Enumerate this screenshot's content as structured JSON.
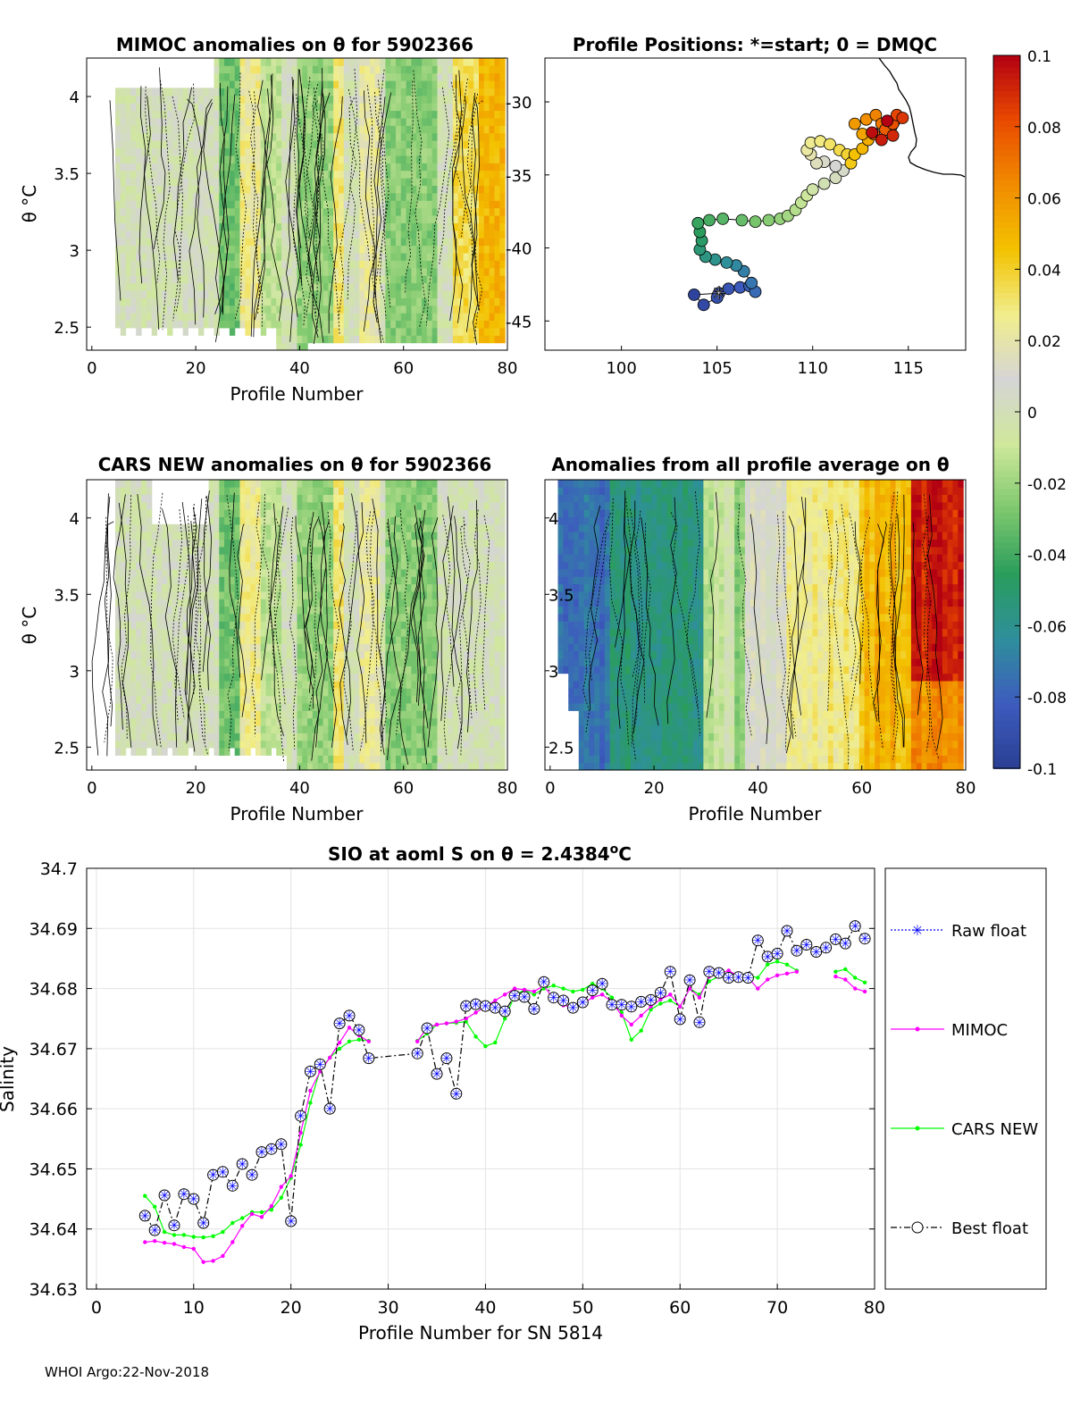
{
  "figure": {
    "footer": "WHOI Argo:22-Nov-2018",
    "colors": {
      "best": "#000000",
      "raw": "#0000ff",
      "mimoc": "#ff00ff",
      "cars": "#00ff00",
      "grid": "#e0e0e0"
    }
  },
  "colorbar": {
    "ticks": [
      "0.1",
      "0.08",
      "0.06",
      "0.04",
      "0.02",
      "0",
      "-0.02",
      "-0.04",
      "-0.06",
      "-0.08",
      "-0.1"
    ],
    "range": [
      -0.1,
      0.1
    ],
    "colormap": [
      "#2b3f94",
      "#3d5cbe",
      "#2f8f9c",
      "#2a9d5c",
      "#7ec86e",
      "#cfe89b",
      "#d5d5d5",
      "#f1ee8c",
      "#f3c200",
      "#f18c00",
      "#e94a00",
      "#b30012"
    ]
  },
  "chart_data": [
    {
      "id": "mimoc_section",
      "type": "heatmap",
      "title": "MIMOC anomalies on θ  for 5902366",
      "xlabel": "Profile Number",
      "ylabel": "θ °C",
      "x_ticks": [
        "0",
        "20",
        "40",
        "60",
        "80"
      ],
      "y_ticks": [
        "4",
        "3.5",
        "3",
        "2.5"
      ],
      "xlim": [
        -1,
        80
      ],
      "ylim": [
        2.35,
        4.25
      ]
    },
    {
      "id": "positions_map",
      "type": "scatter",
      "title": "Profile Positions: *=start; 0 = DMQC",
      "x_ticks": [
        "100",
        "105",
        "110",
        "115"
      ],
      "y_ticks": [
        "-30",
        "-35",
        "-40",
        "-45"
      ],
      "xlim": [
        96,
        118
      ],
      "ylim": [
        -47,
        -27
      ],
      "track": [
        [
          105.1,
          -43.1
        ],
        [
          103.8,
          -43.2
        ],
        [
          104.3,
          -43.9
        ],
        [
          105.0,
          -43.4
        ],
        [
          105.6,
          -42.8
        ],
        [
          106.2,
          -42.7
        ],
        [
          106.7,
          -42.6
        ],
        [
          107.0,
          -43.0
        ],
        [
          106.8,
          -42.4
        ],
        [
          106.4,
          -41.6
        ],
        [
          106.0,
          -41.2
        ],
        [
          105.5,
          -41.0
        ],
        [
          104.9,
          -40.8
        ],
        [
          104.4,
          -40.6
        ],
        [
          104.1,
          -40.1
        ],
        [
          104.2,
          -39.5
        ],
        [
          104.1,
          -38.9
        ],
        [
          104.0,
          -38.3
        ],
        [
          104.6,
          -38.1
        ],
        [
          105.3,
          -38.0
        ],
        [
          106.3,
          -38.1
        ],
        [
          107.0,
          -38.2
        ],
        [
          107.7,
          -38.1
        ],
        [
          108.3,
          -38.0
        ],
        [
          108.7,
          -37.8
        ],
        [
          109.1,
          -37.4
        ],
        [
          109.4,
          -36.9
        ],
        [
          109.7,
          -36.4
        ],
        [
          110.0,
          -36.0
        ],
        [
          110.6,
          -35.6
        ],
        [
          111.2,
          -35.2
        ],
        [
          111.6,
          -34.7
        ],
        [
          111.2,
          -34.4
        ],
        [
          110.6,
          -34.1
        ],
        [
          110.2,
          -34.2
        ],
        [
          109.9,
          -33.6
        ],
        [
          109.7,
          -33.3
        ],
        [
          109.9,
          -32.8
        ],
        [
          110.4,
          -32.7
        ],
        [
          110.9,
          -32.9
        ],
        [
          111.4,
          -33.3
        ],
        [
          111.8,
          -33.6
        ],
        [
          112.0,
          -34.2
        ],
        [
          112.2,
          -33.6
        ],
        [
          112.6,
          -33.2
        ],
        [
          112.9,
          -32.6
        ],
        [
          112.6,
          -32.2
        ],
        [
          112.2,
          -31.5
        ],
        [
          112.8,
          -31.2
        ],
        [
          113.3,
          -30.9
        ],
        [
          113.6,
          -31.5
        ],
        [
          113.2,
          -32.2
        ],
        [
          113.8,
          -31.9
        ],
        [
          114.2,
          -31.5
        ],
        [
          114.4,
          -30.9
        ],
        [
          114.7,
          -31.1
        ],
        [
          114.2,
          -32.3
        ],
        [
          113.6,
          -32.6
        ],
        [
          113.1,
          -32.1
        ],
        [
          113.9,
          -31.3
        ]
      ]
    },
    {
      "id": "cars_section",
      "type": "heatmap",
      "title": "CARS NEW anomalies on θ for 5902366",
      "xlabel": "Profile Number",
      "ylabel": "θ °C",
      "x_ticks": [
        "0",
        "20",
        "40",
        "60",
        "80"
      ],
      "y_ticks": [
        "4",
        "3.5",
        "3",
        "2.5"
      ],
      "xlim": [
        -1,
        80
      ],
      "ylim": [
        2.35,
        4.25
      ]
    },
    {
      "id": "avg_section",
      "type": "heatmap",
      "title": "Anomalies from all profile average on θ",
      "xlabel": "Profile Number",
      "x_ticks": [
        "0",
        "20",
        "40",
        "60",
        "80"
      ],
      "y_ticks": [
        "4",
        "3.5",
        "3",
        "2.5"
      ],
      "xlim": [
        -1,
        80
      ],
      "ylim": [
        2.35,
        4.25
      ]
    },
    {
      "id": "salinity_line",
      "type": "line",
      "title": "SIO at aoml S on θ = 2.4384",
      "title_unit": "o",
      "title_unit_suffix": "C",
      "xlabel": "Profile Number for SN 5814",
      "ylabel": "Salinity",
      "xlim": [
        0,
        80
      ],
      "ylim": [
        34.63,
        34.7
      ],
      "x_ticks": [
        "0",
        "10",
        "20",
        "30",
        "40",
        "50",
        "60",
        "70",
        "80"
      ],
      "y_ticks": [
        "34.7",
        "34.69",
        "34.68",
        "34.67",
        "34.66",
        "34.65",
        "34.64",
        "34.63"
      ],
      "legend": [
        "Raw float",
        "MIMOC",
        "CARS NEW",
        "Best float"
      ],
      "series": [
        {
          "name": "Raw float / Best float",
          "x": [
            5,
            6,
            7,
            8,
            9,
            10,
            11,
            12,
            13,
            14,
            15,
            16,
            17,
            18,
            19,
            20,
            21,
            22,
            23,
            24,
            25,
            26,
            27,
            28,
            33,
            34,
            35,
            36,
            37,
            38,
            39,
            40,
            41,
            42,
            43,
            44,
            45,
            46,
            47,
            48,
            49,
            50,
            51,
            52,
            53,
            54,
            55,
            56,
            57,
            58,
            59,
            60,
            61,
            62,
            63,
            64,
            65,
            66,
            67,
            68,
            69,
            70,
            71,
            72,
            73,
            74,
            75,
            76,
            77,
            78,
            79
          ],
          "y": [
            34.6422,
            34.6398,
            34.6456,
            34.6406,
            34.6458,
            34.645,
            34.641,
            34.649,
            34.6495,
            34.6472,
            34.6508,
            34.649,
            34.6528,
            34.6533,
            34.6541,
            34.6413,
            34.6588,
            34.6662,
            34.6674,
            34.66,
            34.6742,
            34.6755,
            34.6731,
            34.6684,
            34.6692,
            34.6734,
            34.6658,
            34.6684,
            34.6625,
            34.6771,
            34.6774,
            34.6771,
            34.6768,
            34.6762,
            34.6788,
            34.6786,
            34.6766,
            34.6811,
            34.6785,
            34.678,
            34.6768,
            34.6777,
            34.6797,
            34.6808,
            34.6773,
            34.6773,
            34.677,
            34.6778,
            34.6781,
            34.6793,
            34.6828,
            34.6749,
            34.6814,
            34.6744,
            34.6828,
            34.6826,
            34.6818,
            34.6819,
            34.6818,
            34.688,
            34.6853,
            34.6858,
            34.6896,
            34.6863,
            34.6873,
            34.6861,
            34.6868,
            34.6882,
            34.6875,
            34.6904,
            34.6883
          ]
        },
        {
          "name": "MIMOC",
          "x": [
            5,
            6,
            7,
            8,
            9,
            10,
            11,
            12,
            13,
            14,
            15,
            16,
            17,
            18,
            19,
            20,
            21,
            22,
            23,
            24,
            25,
            26,
            27,
            28,
            33,
            34,
            35,
            36,
            37,
            38,
            39,
            40,
            41,
            42,
            43,
            44,
            45,
            46,
            47,
            48,
            49,
            50,
            51,
            52,
            53,
            54,
            55,
            56,
            57,
            58,
            59,
            60,
            61,
            62,
            63,
            64,
            65,
            66,
            67,
            68,
            69,
            70,
            71,
            72,
            76,
            77,
            78,
            79
          ],
          "y": [
            34.6378,
            34.638,
            34.6377,
            34.6375,
            34.637,
            34.6367,
            34.6345,
            34.6347,
            34.6355,
            34.6378,
            34.6405,
            34.6425,
            34.642,
            34.6438,
            34.647,
            34.6488,
            34.656,
            34.663,
            34.6662,
            34.6685,
            34.671,
            34.6735,
            34.6722,
            34.6712,
            34.6712,
            34.6735,
            34.674,
            34.6742,
            34.6745,
            34.675,
            34.676,
            34.677,
            34.678,
            34.679,
            34.68,
            34.6798,
            34.6795,
            34.6805,
            34.6782,
            34.6772,
            34.677,
            34.6775,
            34.6785,
            34.679,
            34.6778,
            34.6755,
            34.674,
            34.6755,
            34.677,
            34.6782,
            34.679,
            34.677,
            34.68,
            34.6785,
            34.682,
            34.6825,
            34.683,
            34.682,
            34.6818,
            34.68,
            34.6815,
            34.6822,
            34.6825,
            34.6828,
            34.682,
            34.6815,
            34.68,
            34.6795
          ]
        },
        {
          "name": "CARS NEW",
          "x": [
            5,
            6,
            7,
            8,
            9,
            10,
            11,
            12,
            13,
            14,
            15,
            16,
            17,
            18,
            19,
            20,
            21,
            22,
            23,
            24,
            25,
            26,
            27,
            28,
            33,
            34,
            35,
            36,
            37,
            38,
            39,
            40,
            41,
            42,
            43,
            44,
            45,
            46,
            47,
            48,
            49,
            50,
            51,
            52,
            53,
            54,
            55,
            56,
            57,
            58,
            59,
            60,
            61,
            62,
            63,
            64,
            65,
            66,
            67,
            68,
            69,
            70,
            71,
            72,
            76,
            77,
            78,
            79
          ],
          "y": [
            34.6455,
            34.6437,
            34.6395,
            34.639,
            34.639,
            34.6387,
            34.6386,
            34.6388,
            34.6395,
            34.641,
            34.6418,
            34.6428,
            34.6428,
            34.6432,
            34.6452,
            34.6485,
            34.654,
            34.661,
            34.6665,
            34.6685,
            34.67,
            34.6712,
            34.6715,
            34.6713,
            34.6713,
            34.6725,
            34.674,
            34.6742,
            34.6743,
            34.6745,
            34.672,
            34.6704,
            34.671,
            34.675,
            34.6788,
            34.6798,
            34.679,
            34.68,
            34.6805,
            34.68,
            34.6795,
            34.6798,
            34.6808,
            34.68,
            34.6785,
            34.676,
            34.6715,
            34.673,
            34.6765,
            34.6775,
            34.678,
            34.677,
            34.68,
            34.679,
            34.6812,
            34.682,
            34.6822,
            34.682,
            34.6822,
            34.6818,
            34.684,
            34.6845,
            34.684,
            34.683,
            34.6828,
            34.6832,
            34.6818,
            34.681
          ]
        }
      ]
    }
  ]
}
